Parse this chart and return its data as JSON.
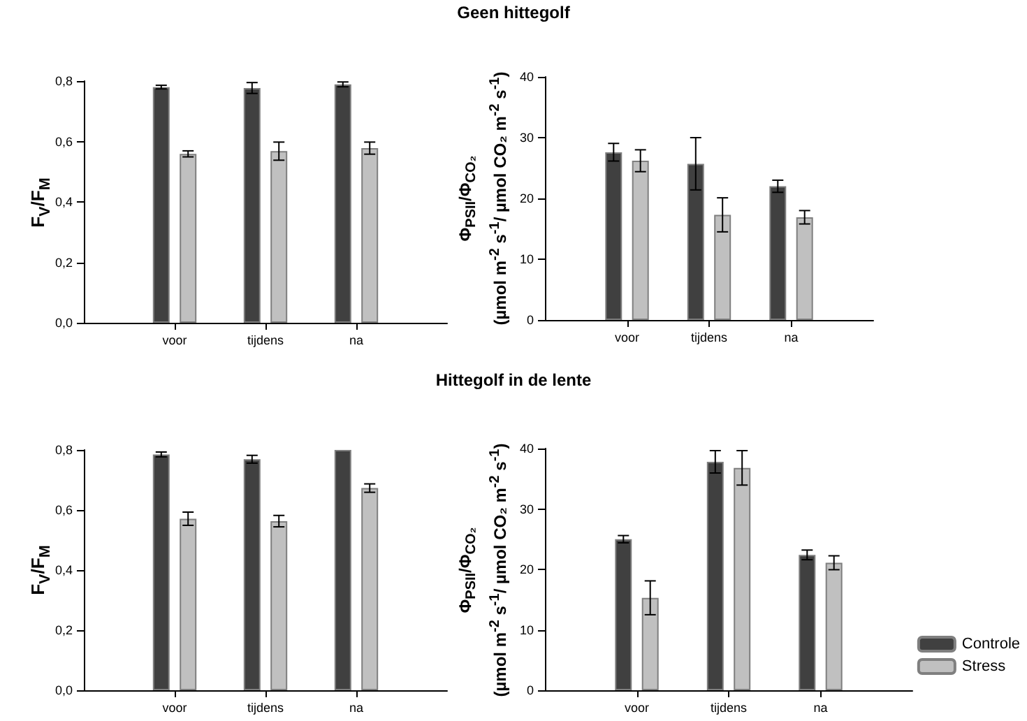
{
  "chart_data": [
    {
      "type": "bar",
      "ylabel": "F$_{V}$/F$_{M}$",
      "categories": [
        "voor",
        "tijdens",
        "na"
      ],
      "ylim": [
        0,
        0.8
      ],
      "yticks": [
        {
          "value": 0,
          "label": "0,0"
        },
        {
          "value": 0.2,
          "label": "0,2"
        },
        {
          "value": 0.4,
          "label": "0,4"
        },
        {
          "value": 0.6,
          "label": "0,6"
        },
        {
          "value": 0.8,
          "label": "0,8"
        }
      ],
      "legend": false,
      "grid": false,
      "series": [
        {
          "color": "#404040",
          "values": [
            0.78,
            0.777,
            0.789
          ],
          "errors": [
            0.006,
            0.018,
            0.008
          ]
        },
        {
          "color": "#c0c0c0",
          "values": [
            0.559,
            0.568,
            0.578
          ],
          "errors": [
            0.01,
            0.03,
            0.02
          ]
        }
      ]
    },
    {
      "type": "bar",
      "title": "Geen hittegolf",
      "ylabel": "Φ$_{PSII}$/Φ$_{CO₂}$\n(µmol m$^{-2}$ s$^{-1}$/ µmol CO₂ m$^{-2}$ s$^{-1}$)",
      "categories": [
        "voor",
        "tijdens",
        "na"
      ],
      "ylim": [
        0,
        40
      ],
      "yticks": [
        0,
        10,
        20,
        30,
        40
      ],
      "legend": false,
      "grid": false,
      "series": [
        {
          "color": "#404040",
          "values": [
            27.6,
            25.7,
            22.0
          ],
          "errors": [
            1.45,
            4.3,
            1.0
          ]
        },
        {
          "color": "#c0c0c0",
          "values": [
            26.2,
            17.3,
            16.9
          ],
          "errors": [
            1.8,
            2.8,
            1.1
          ]
        }
      ]
    },
    {
      "type": "bar",
      "title": "Hittegolf in de lente",
      "ylabel": "F$_{V}$/F$_{M}$",
      "categories": [
        "voor",
        "tijdens",
        "na"
      ],
      "ylim": [
        0,
        0.8
      ],
      "yticks": [
        {
          "value": 0,
          "label": "0,0"
        },
        {
          "value": 0.2,
          "label": "0,2"
        },
        {
          "value": 0.4,
          "label": "0,4"
        },
        {
          "value": 0.6,
          "label": "0,6"
        },
        {
          "value": 0.8,
          "label": "0,8"
        }
      ],
      "legend": false,
      "grid": false,
      "series": [
        {
          "color": "#404040",
          "values": [
            0.785,
            0.769,
            0.8
          ],
          "errors": [
            0.008,
            0.013,
            null
          ]
        },
        {
          "color": "#c0c0c0",
          "values": [
            0.571,
            0.563,
            0.673
          ],
          "errors": [
            0.022,
            0.019,
            0.014
          ]
        }
      ]
    },
    {
      "type": "bar",
      "ylabel": "Φ$_{PSII}$/Φ$_{CO₂}$\n(µmol m$^{-2}$ s$^{-1}$/ µmol CO₂ m$^{-2}$ s$^{-1}$)",
      "categories": [
        "voor",
        "tijdens",
        "na"
      ],
      "ylim": [
        0,
        40
      ],
      "yticks": [
        0,
        10,
        20,
        30,
        40
      ],
      "legend": "right",
      "grid": false,
      "series": [
        {
          "name": "Controle",
          "color": "#404040",
          "values": [
            25.0,
            37.8,
            22.4
          ],
          "errors": [
            0.6,
            1.85,
            0.8
          ]
        },
        {
          "name": "Stress",
          "color": "#c0c0c0",
          "values": [
            15.3,
            36.8,
            21.1
          ],
          "errors": [
            2.8,
            2.85,
            1.15
          ]
        }
      ]
    }
  ]
}
